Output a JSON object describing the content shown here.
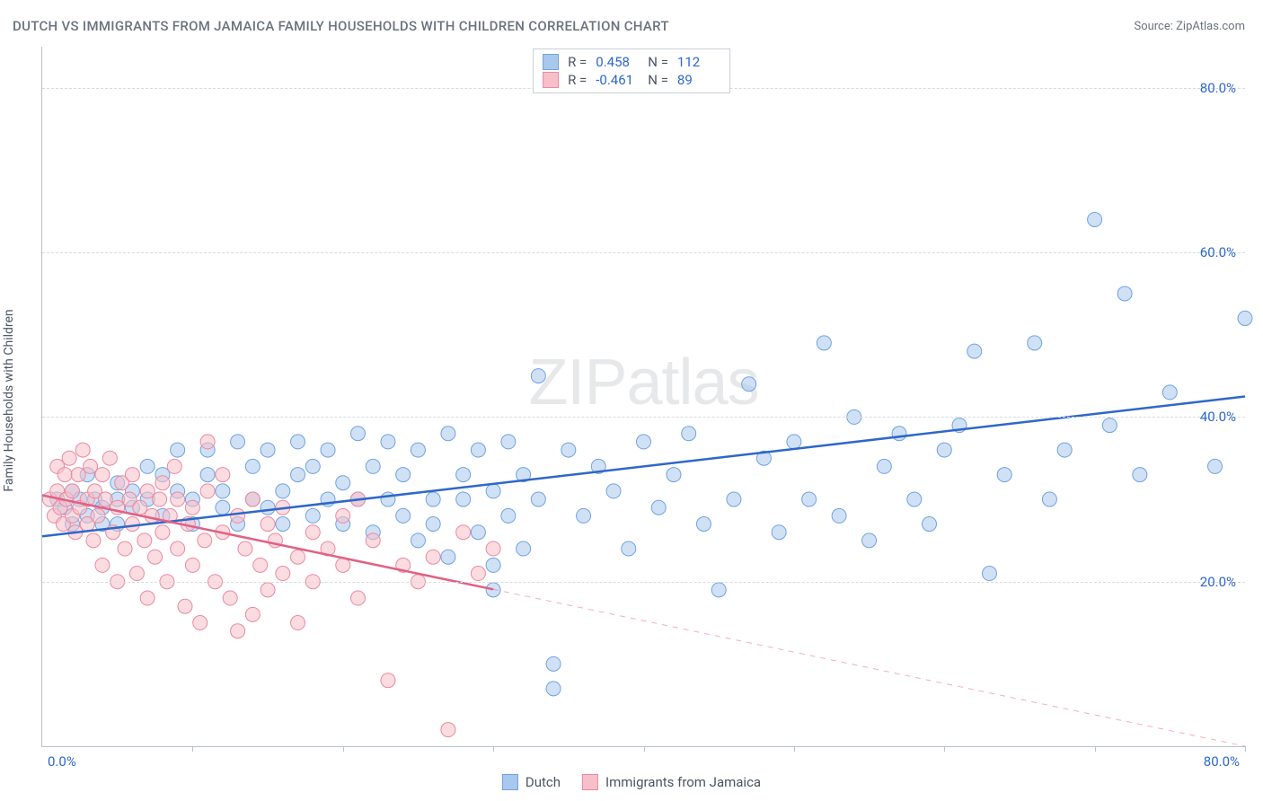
{
  "title": "DUTCH VS IMMIGRANTS FROM JAMAICA FAMILY HOUSEHOLDS WITH CHILDREN CORRELATION CHART",
  "source_label": "Source: ZipAtlas.com",
  "y_axis_label": "Family Households with Children",
  "watermark": "ZIPatlas",
  "chart": {
    "type": "scatter",
    "background_color": "#ffffff",
    "grid_color": "#d7dbe0",
    "axis_color": "#b9c1cc",
    "tick_label_color": "#2f67c9",
    "text_color": "#6b7280",
    "xlim": [
      0,
      80
    ],
    "ylim": [
      0,
      85
    ],
    "x_ticks": [
      10,
      20,
      30,
      40,
      50,
      60,
      70,
      80
    ],
    "y_ticks": [
      {
        "value": 20,
        "label": "20.0%"
      },
      {
        "value": 40,
        "label": "40.0%"
      },
      {
        "value": 60,
        "label": "60.0%"
      },
      {
        "value": 80,
        "label": "80.0%"
      }
    ],
    "x_origin_label": "0.0%",
    "x_max_label": "80.0%",
    "marker_radius": 8,
    "marker_opacity": 0.55,
    "line_width": 2.5,
    "series": [
      {
        "name": "Dutch",
        "fill_color": "#a9c8ee",
        "stroke_color": "#6fa3de",
        "line_color": "#2f67c9",
        "R": "0.458",
        "N": "112",
        "trend": {
          "x1": 0,
          "y1": 25.5,
          "x2": 80,
          "y2": 42.5,
          "solid_until_x": 80
        },
        "points": [
          [
            1,
            30
          ],
          [
            1.5,
            29
          ],
          [
            2,
            31
          ],
          [
            2,
            27
          ],
          [
            2.5,
            30
          ],
          [
            3,
            28
          ],
          [
            3,
            33
          ],
          [
            3.5,
            30
          ],
          [
            4,
            29
          ],
          [
            4,
            27
          ],
          [
            5,
            30
          ],
          [
            5,
            32
          ],
          [
            5,
            27
          ],
          [
            6,
            29
          ],
          [
            6,
            31
          ],
          [
            7,
            34
          ],
          [
            7,
            30
          ],
          [
            8,
            28
          ],
          [
            8,
            33
          ],
          [
            9,
            31
          ],
          [
            9,
            36
          ],
          [
            10,
            30
          ],
          [
            10,
            27
          ],
          [
            11,
            33
          ],
          [
            11,
            36
          ],
          [
            12,
            29
          ],
          [
            12,
            31
          ],
          [
            13,
            27
          ],
          [
            13,
            37
          ],
          [
            14,
            30
          ],
          [
            14,
            34
          ],
          [
            15,
            36
          ],
          [
            15,
            29
          ],
          [
            16,
            31
          ],
          [
            16,
            27
          ],
          [
            17,
            33
          ],
          [
            17,
            37
          ],
          [
            18,
            28
          ],
          [
            18,
            34
          ],
          [
            19,
            30
          ],
          [
            19,
            36
          ],
          [
            20,
            32
          ],
          [
            20,
            27
          ],
          [
            21,
            38
          ],
          [
            21,
            30
          ],
          [
            22,
            26
          ],
          [
            22,
            34
          ],
          [
            23,
            37
          ],
          [
            23,
            30
          ],
          [
            24,
            28
          ],
          [
            24,
            33
          ],
          [
            25,
            25
          ],
          [
            25,
            36
          ],
          [
            26,
            30
          ],
          [
            26,
            27
          ],
          [
            27,
            38
          ],
          [
            27,
            23
          ],
          [
            28,
            33
          ],
          [
            28,
            30
          ],
          [
            29,
            36
          ],
          [
            29,
            26
          ],
          [
            30,
            31
          ],
          [
            30,
            19
          ],
          [
            31,
            37
          ],
          [
            31,
            28
          ],
          [
            32,
            33
          ],
          [
            32,
            24
          ],
          [
            33,
            45
          ],
          [
            33,
            30
          ],
          [
            34,
            10
          ],
          [
            35,
            36
          ],
          [
            36,
            28
          ],
          [
            37,
            34
          ],
          [
            38,
            31
          ],
          [
            39,
            24
          ],
          [
            40,
            37
          ],
          [
            41,
            29
          ],
          [
            42,
            33
          ],
          [
            43,
            38
          ],
          [
            44,
            27
          ],
          [
            45,
            19
          ],
          [
            46,
            30
          ],
          [
            47,
            44
          ],
          [
            48,
            35
          ],
          [
            49,
            26
          ],
          [
            50,
            37
          ],
          [
            51,
            30
          ],
          [
            52,
            49
          ],
          [
            53,
            28
          ],
          [
            54,
            40
          ],
          [
            55,
            25
          ],
          [
            56,
            34
          ],
          [
            57,
            38
          ],
          [
            58,
            30
          ],
          [
            59,
            27
          ],
          [
            60,
            36
          ],
          [
            61,
            39
          ],
          [
            62,
            48
          ],
          [
            63,
            21
          ],
          [
            64,
            33
          ],
          [
            66,
            49
          ],
          [
            67,
            30
          ],
          [
            68,
            36
          ],
          [
            70,
            64
          ],
          [
            71,
            39
          ],
          [
            72,
            55
          ],
          [
            73,
            33
          ],
          [
            75,
            43
          ],
          [
            78,
            34
          ],
          [
            80,
            52
          ],
          [
            34,
            7
          ],
          [
            30,
            22
          ]
        ]
      },
      {
        "name": "Immigrants from Jamaica",
        "fill_color": "#f7bfc9",
        "stroke_color": "#ea8aa0",
        "line_color": "#e26084",
        "R": "-0.461",
        "N": "89",
        "trend": {
          "x1": 0,
          "y1": 30.5,
          "x2": 80,
          "y2": 0,
          "solid_until_x": 30
        },
        "points": [
          [
            0.5,
            30
          ],
          [
            0.8,
            28
          ],
          [
            1,
            31
          ],
          [
            1,
            34
          ],
          [
            1.2,
            29
          ],
          [
            1.4,
            27
          ],
          [
            1.5,
            33
          ],
          [
            1.6,
            30
          ],
          [
            1.8,
            35
          ],
          [
            2,
            28
          ],
          [
            2,
            31
          ],
          [
            2.2,
            26
          ],
          [
            2.4,
            33
          ],
          [
            2.5,
            29
          ],
          [
            2.7,
            36
          ],
          [
            3,
            27
          ],
          [
            3,
            30
          ],
          [
            3.2,
            34
          ],
          [
            3.4,
            25
          ],
          [
            3.5,
            31
          ],
          [
            3.7,
            28
          ],
          [
            4,
            33
          ],
          [
            4,
            22
          ],
          [
            4.2,
            30
          ],
          [
            4.5,
            35
          ],
          [
            4.7,
            26
          ],
          [
            5,
            29
          ],
          [
            5,
            20
          ],
          [
            5.3,
            32
          ],
          [
            5.5,
            24
          ],
          [
            5.8,
            30
          ],
          [
            6,
            27
          ],
          [
            6,
            33
          ],
          [
            6.3,
            21
          ],
          [
            6.5,
            29
          ],
          [
            6.8,
            25
          ],
          [
            7,
            31
          ],
          [
            7,
            18
          ],
          [
            7.3,
            28
          ],
          [
            7.5,
            23
          ],
          [
            7.8,
            30
          ],
          [
            8,
            26
          ],
          [
            8,
            32
          ],
          [
            8.3,
            20
          ],
          [
            8.5,
            28
          ],
          [
            8.8,
            34
          ],
          [
            9,
            24
          ],
          [
            9,
            30
          ],
          [
            9.5,
            17
          ],
          [
            9.7,
            27
          ],
          [
            10,
            22
          ],
          [
            10,
            29
          ],
          [
            10.5,
            15
          ],
          [
            10.8,
            25
          ],
          [
            11,
            31
          ],
          [
            11,
            37
          ],
          [
            11.5,
            20
          ],
          [
            12,
            26
          ],
          [
            12,
            33
          ],
          [
            12.5,
            18
          ],
          [
            13,
            28
          ],
          [
            13,
            14
          ],
          [
            13.5,
            24
          ],
          [
            14,
            30
          ],
          [
            14,
            16
          ],
          [
            14.5,
            22
          ],
          [
            15,
            27
          ],
          [
            15,
            19
          ],
          [
            15.5,
            25
          ],
          [
            16,
            21
          ],
          [
            16,
            29
          ],
          [
            17,
            23
          ],
          [
            17,
            15
          ],
          [
            18,
            26
          ],
          [
            18,
            20
          ],
          [
            19,
            24
          ],
          [
            20,
            22
          ],
          [
            20,
            28
          ],
          [
            21,
            18
          ],
          [
            22,
            25
          ],
          [
            23,
            8
          ],
          [
            24,
            22
          ],
          [
            25,
            20
          ],
          [
            26,
            23
          ],
          [
            27,
            2
          ],
          [
            28,
            26
          ],
          [
            29,
            21
          ],
          [
            30,
            24
          ],
          [
            21,
            30
          ]
        ]
      }
    ]
  },
  "legend": {
    "series1_label": "Dutch",
    "series2_label": "Immigrants from Jamaica"
  }
}
